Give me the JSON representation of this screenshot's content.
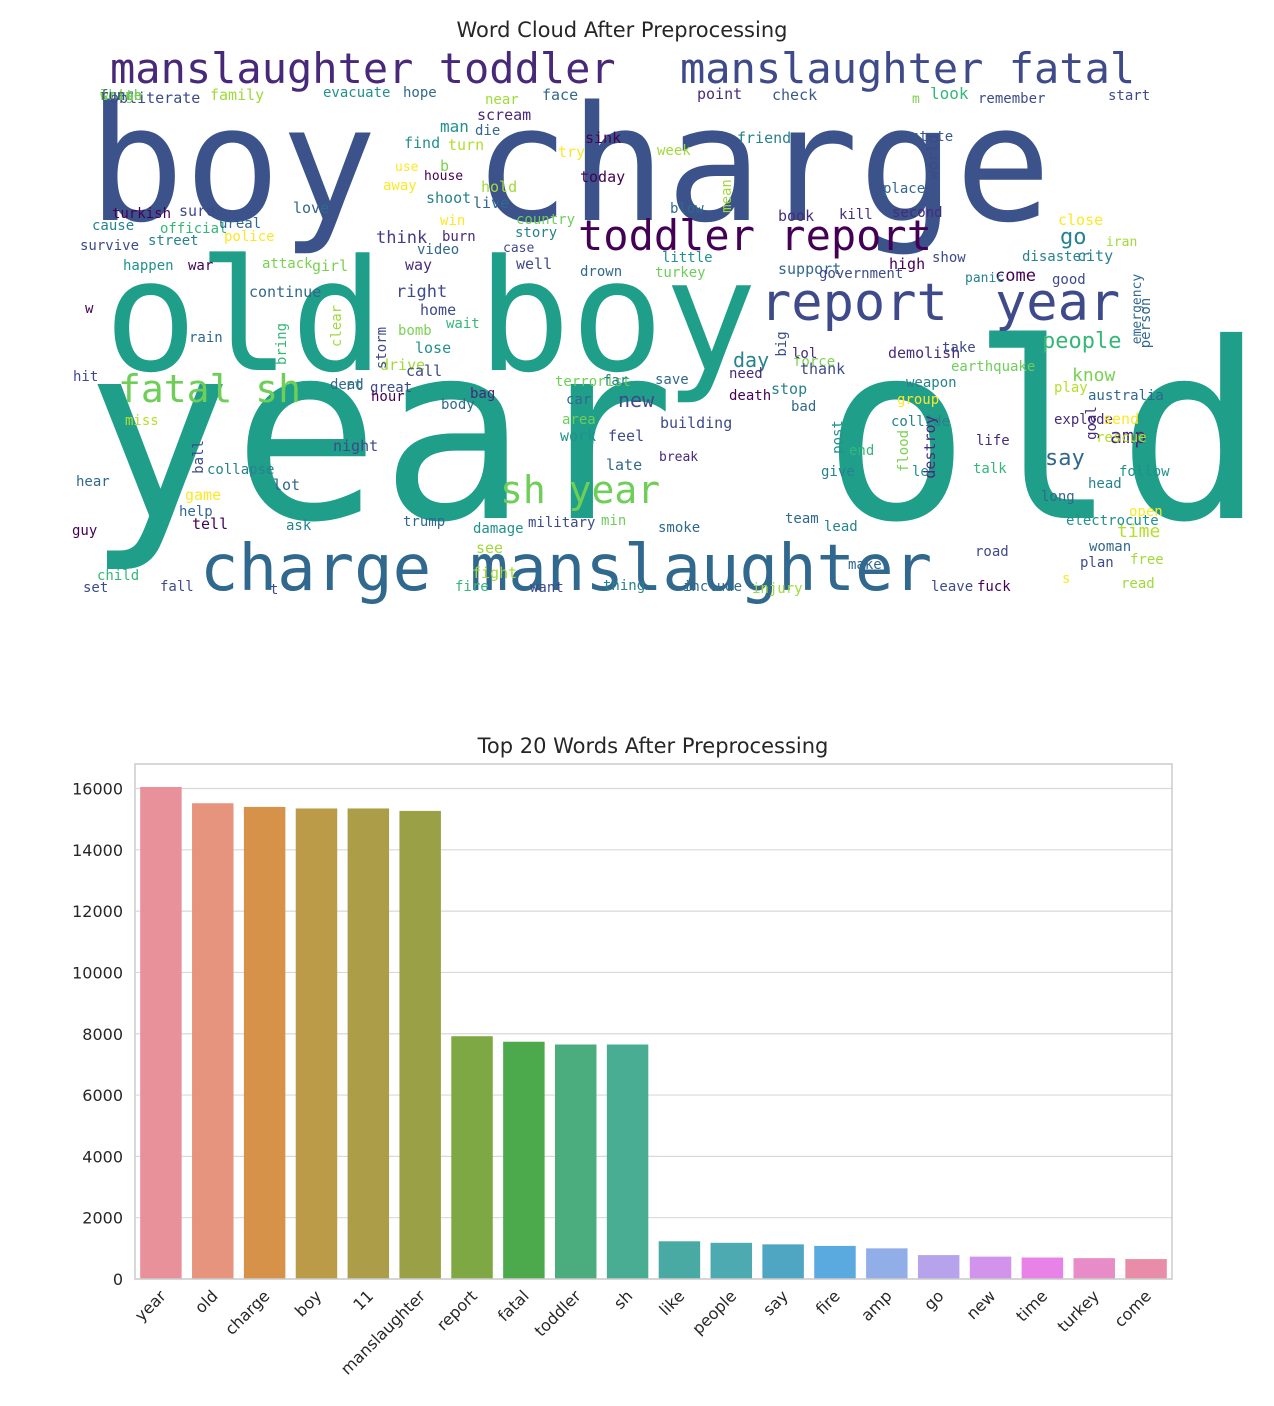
{
  "wordcloud": {
    "title": "Word Cloud After Preprocessing",
    "words": [
      {
        "text": "year old",
        "color": "#1f9e89"
      },
      {
        "text": "boy charge",
        "color": "#3b528b"
      },
      {
        "text": "old boy",
        "color": "#1f9e89"
      },
      {
        "text": "charge manslaughter",
        "color": "#31688e"
      },
      {
        "text": "manslaughter toddler",
        "color": "#482878"
      },
      {
        "text": "manslaughter fatal",
        "color": "#3e4a89"
      },
      {
        "text": "toddler report",
        "color": "#440154"
      },
      {
        "text": "report",
        "color": "#3e4a89"
      },
      {
        "text": "year",
        "color": "#3e4a89"
      },
      {
        "text": "fatal sh",
        "color": "#6ece58"
      },
      {
        "text": "sh year",
        "color": "#6ece58"
      },
      {
        "text": "people",
        "color": "#35b779"
      },
      {
        "text": "go",
        "color": "#26828e"
      },
      {
        "text": "say",
        "color": "#31688e"
      },
      {
        "text": "amp",
        "color": "#472c7a"
      },
      {
        "text": "know",
        "color": "#7ad151"
      },
      {
        "text": "time",
        "color": "#b5de2b"
      },
      {
        "text": "new",
        "color": "#3e4a89"
      },
      {
        "text": "day",
        "color": "#26828e"
      },
      {
        "text": "come",
        "color": "#440154"
      },
      {
        "text": "think",
        "color": "#433e85"
      },
      {
        "text": "right",
        "color": "#3e4a89"
      },
      {
        "text": "obliterate",
        "color": "#3e4a89"
      },
      {
        "text": "family",
        "color": "#a0da39"
      },
      {
        "text": "evacuate",
        "color": "#21918c"
      },
      {
        "text": "hope",
        "color": "#31688e"
      },
      {
        "text": "near",
        "color": "#a0da39"
      },
      {
        "text": "face",
        "color": "#31688e"
      },
      {
        "text": "point",
        "color": "#472c7a"
      },
      {
        "text": "check",
        "color": "#38598c"
      },
      {
        "text": "m",
        "color": "#7ad151"
      },
      {
        "text": "look",
        "color": "#35b779"
      },
      {
        "text": "remember",
        "color": "#3e4a89"
      },
      {
        "text": "start",
        "color": "#3e4a89"
      },
      {
        "text": "scream",
        "color": "#482878"
      },
      {
        "text": "man",
        "color": "#21918c"
      },
      {
        "text": "die",
        "color": "#31688e"
      },
      {
        "text": "sink",
        "color": "#440154"
      },
      {
        "text": "friend",
        "color": "#26828e"
      },
      {
        "text": "state",
        "color": "#38598c"
      },
      {
        "text": "find",
        "color": "#21918c"
      },
      {
        "text": "turn",
        "color": "#b5de2b"
      },
      {
        "text": "try",
        "color": "#fde725"
      },
      {
        "text": "week",
        "color": "#a0da39"
      },
      {
        "text": "world",
        "color": "#3e4a89"
      },
      {
        "text": "use",
        "color": "#fde725"
      },
      {
        "text": "b",
        "color": "#7ad151"
      },
      {
        "text": "today",
        "color": "#440154"
      },
      {
        "text": "house",
        "color": "#440154"
      },
      {
        "text": "away",
        "color": "#fde725"
      },
      {
        "text": "hold",
        "color": "#a0da39"
      },
      {
        "text": "place",
        "color": "#31688e"
      },
      {
        "text": "mean",
        "color": "#a0da39"
      },
      {
        "text": "shoot",
        "color": "#26828e"
      },
      {
        "text": "live",
        "color": "#31688e"
      },
      {
        "text": "blow",
        "color": "#31688e"
      },
      {
        "text": "turkish",
        "color": "#440154"
      },
      {
        "text": "sure",
        "color": "#3e4a89"
      },
      {
        "text": "love",
        "color": "#31688e"
      },
      {
        "text": "book",
        "color": "#472c7a"
      },
      {
        "text": "kill",
        "color": "#472c7a"
      },
      {
        "text": "second",
        "color": "#472c7a"
      },
      {
        "text": "close",
        "color": "#fde725"
      },
      {
        "text": "cause",
        "color": "#26828e"
      },
      {
        "text": "official",
        "color": "#35b779"
      },
      {
        "text": "ureal",
        "color": "#31688e"
      },
      {
        "text": "win",
        "color": "#fde725"
      },
      {
        "text": "country",
        "color": "#6ece58"
      },
      {
        "text": "survive",
        "color": "#3e4a89"
      },
      {
        "text": "street",
        "color": "#26828e"
      },
      {
        "text": "police",
        "color": "#fde725"
      },
      {
        "text": "burn",
        "color": "#472c7a"
      },
      {
        "text": "story",
        "color": "#26828e"
      },
      {
        "text": "video",
        "color": "#31688e"
      },
      {
        "text": "case",
        "color": "#3e4a89"
      },
      {
        "text": "little",
        "color": "#21918c"
      },
      {
        "text": "show",
        "color": "#3e4a89"
      },
      {
        "text": "disaster",
        "color": "#26828e"
      },
      {
        "text": "city",
        "color": "#26828e"
      },
      {
        "text": "iran",
        "color": "#a0da39"
      },
      {
        "text": "happen",
        "color": "#21918c"
      },
      {
        "text": "war",
        "color": "#440154"
      },
      {
        "text": "attack",
        "color": "#7ad151"
      },
      {
        "text": "girl",
        "color": "#7ad151"
      },
      {
        "text": "way",
        "color": "#472c7a"
      },
      {
        "text": "well",
        "color": "#3e4a89"
      },
      {
        "text": "drown",
        "color": "#31688e"
      },
      {
        "text": "turkey",
        "color": "#6ece58"
      },
      {
        "text": "support",
        "color": "#31688e"
      },
      {
        "text": "government",
        "color": "#3e4a89"
      },
      {
        "text": "high",
        "color": "#440154"
      },
      {
        "text": "panic",
        "color": "#26828e"
      },
      {
        "text": "good",
        "color": "#3e4a89"
      },
      {
        "text": "w",
        "color": "#440154"
      },
      {
        "text": "continue",
        "color": "#31688e"
      },
      {
        "text": "emergency",
        "color": "#31688e"
      },
      {
        "text": "person",
        "color": "#31688e"
      },
      {
        "text": "rain",
        "color": "#31688e"
      },
      {
        "text": "rt",
        "color": "#26828e"
      },
      {
        "text": "drive",
        "color": "#a0da39"
      },
      {
        "text": "home",
        "color": "#3e4a89"
      },
      {
        "text": "bomb",
        "color": "#7ad151"
      },
      {
        "text": "wait",
        "color": "#35b779"
      },
      {
        "text": "bring",
        "color": "#35b779"
      },
      {
        "text": "clear",
        "color": "#a0da39"
      },
      {
        "text": "storm",
        "color": "#3e4a89"
      },
      {
        "text": "lose",
        "color": "#21918c"
      },
      {
        "text": "force",
        "color": "#7ad151"
      },
      {
        "text": "lol",
        "color": "#472c7a"
      },
      {
        "text": "demolish",
        "color": "#472c7a"
      },
      {
        "text": "take",
        "color": "#3e4a89"
      },
      {
        "text": "hit",
        "color": "#3e4a89"
      },
      {
        "text": "call",
        "color": "#3e4a89"
      },
      {
        "text": "big",
        "color": "#3e4a89"
      },
      {
        "text": "thank",
        "color": "#3e4a89"
      },
      {
        "text": "need",
        "color": "#472c7a"
      },
      {
        "text": "earthquake",
        "color": "#6ece58"
      },
      {
        "text": "dead",
        "color": "#31688e"
      },
      {
        "text": "great",
        "color": "#3e4a89"
      },
      {
        "text": "terrorist",
        "color": "#6ece58"
      },
      {
        "text": "far",
        "color": "#26828e"
      },
      {
        "text": "save",
        "color": "#31688e"
      },
      {
        "text": "weapon",
        "color": "#26828e"
      },
      {
        "text": "play",
        "color": "#b5de2b"
      },
      {
        "text": "hour",
        "color": "#440154"
      },
      {
        "text": "body",
        "color": "#31688e"
      },
      {
        "text": "bag",
        "color": "#482878"
      },
      {
        "text": "car",
        "color": "#31688e"
      },
      {
        "text": "death",
        "color": "#440154"
      },
      {
        "text": "stop",
        "color": "#26828e"
      },
      {
        "text": "group",
        "color": "#fde725"
      },
      {
        "text": "bad",
        "color": "#31688e"
      },
      {
        "text": "australia",
        "color": "#31688e"
      },
      {
        "text": "miss",
        "color": "#b5de2b"
      },
      {
        "text": "area",
        "color": "#6ece58"
      },
      {
        "text": "building",
        "color": "#3e4a89"
      },
      {
        "text": "collide",
        "color": "#26828e"
      },
      {
        "text": "explode",
        "color": "#472c7a"
      },
      {
        "text": "rescue",
        "color": "#b5de2b"
      },
      {
        "text": "send",
        "color": "#fde725"
      },
      {
        "text": "work",
        "color": "#21918c"
      },
      {
        "text": "feel",
        "color": "#3e4a89"
      },
      {
        "text": "end",
        "color": "#35b779"
      },
      {
        "text": "let",
        "color": "#21918c"
      },
      {
        "text": "goal",
        "color": "#472c7a"
      },
      {
        "text": "life",
        "color": "#472c7a"
      },
      {
        "text": "night",
        "color": "#3e4a89"
      },
      {
        "text": "collapse",
        "color": "#26828e"
      },
      {
        "text": "post",
        "color": "#21918c"
      },
      {
        "text": "flood",
        "color": "#7ad151"
      },
      {
        "text": "destroy",
        "color": "#472c7a"
      },
      {
        "text": "late",
        "color": "#31688e"
      },
      {
        "text": "break",
        "color": "#482878"
      },
      {
        "text": "ball",
        "color": "#3e4a89"
      },
      {
        "text": "give",
        "color": "#26828e"
      },
      {
        "text": "talk",
        "color": "#35b779"
      },
      {
        "text": "follow",
        "color": "#21918c"
      },
      {
        "text": "hear",
        "color": "#31688e"
      },
      {
        "text": "game",
        "color": "#fde725"
      },
      {
        "text": "lot",
        "color": "#31688e"
      },
      {
        "text": "head",
        "color": "#26828e"
      },
      {
        "text": "long",
        "color": "#31688e"
      },
      {
        "text": "help",
        "color": "#31688e"
      },
      {
        "text": "open",
        "color": "#fde725"
      },
      {
        "text": "tell",
        "color": "#440154"
      },
      {
        "text": "ask",
        "color": "#26828e"
      },
      {
        "text": "trump",
        "color": "#31688e"
      },
      {
        "text": "military",
        "color": "#3e4a89"
      },
      {
        "text": "min",
        "color": "#6ece58"
      },
      {
        "text": "team",
        "color": "#31688e"
      },
      {
        "text": "lead",
        "color": "#26828e"
      },
      {
        "text": "electrocute",
        "color": "#21918c"
      },
      {
        "text": "guy",
        "color": "#440154"
      },
      {
        "text": "damage",
        "color": "#21918c"
      },
      {
        "text": "smoke",
        "color": "#31688e"
      },
      {
        "text": "see",
        "color": "#a0da39"
      },
      {
        "text": "woman",
        "color": "#31688e"
      },
      {
        "text": "road",
        "color": "#3e4a89"
      },
      {
        "text": "plan",
        "color": "#3e4a89"
      },
      {
        "text": "free",
        "color": "#a0da39"
      },
      {
        "text": "make",
        "color": "#31688e"
      },
      {
        "text": "fight",
        "color": "#a0da39"
      },
      {
        "text": "child",
        "color": "#35b779"
      },
      {
        "text": "s",
        "color": "#fde725"
      },
      {
        "text": "set",
        "color": "#3e4a89"
      },
      {
        "text": "fall",
        "color": "#3e4a89"
      },
      {
        "text": "t",
        "color": "#3e4a89"
      },
      {
        "text": "fire",
        "color": "#35b779"
      },
      {
        "text": "want",
        "color": "#3e4a89"
      },
      {
        "text": "thing",
        "color": "#26828e"
      },
      {
        "text": "include",
        "color": "#31688e"
      },
      {
        "text": "injury",
        "color": "#a0da39"
      },
      {
        "text": "leave",
        "color": "#3e4a89"
      },
      {
        "text": "fuck",
        "color": "#440154"
      },
      {
        "text": "read",
        "color": "#a0da39"
      },
      {
        "text": "large",
        "color": "#6ece58"
      },
      {
        "text": "watch",
        "color": "#a0da39"
      },
      {
        "text": "fear",
        "color": "#31688e"
      },
      {
        "text": "shit",
        "color": "#6ece58"
      },
      {
        "text": "crush",
        "color": "#6ece58"
      },
      {
        "text": "run",
        "color": "#3e4a89"
      }
    ]
  },
  "chart_data": {
    "type": "bar",
    "title": "Top 20 Words After Preprocessing",
    "xlabel": "",
    "ylabel": "",
    "categories": [
      "year",
      "old",
      "charge",
      "boy",
      "11",
      "manslaughter",
      "report",
      "fatal",
      "toddler",
      "sh",
      "like",
      "people",
      "say",
      "fire",
      "amp",
      "go",
      "new",
      "time",
      "turkey",
      "come"
    ],
    "values": [
      16050,
      15520,
      15400,
      15350,
      15350,
      15270,
      7920,
      7740,
      7650,
      7650,
      1230,
      1180,
      1130,
      1080,
      1000,
      780,
      730,
      700,
      680,
      650
    ],
    "colors": [
      "#e8919b",
      "#e6947d",
      "#d69249",
      "#bc9b48",
      "#ac9e48",
      "#9aa045",
      "#7ea844",
      "#4daa4c",
      "#4bad7d",
      "#48ad93",
      "#49aaa3",
      "#4daab0",
      "#4ea6c3",
      "#5aaae0",
      "#92aee8",
      "#b6a3ec",
      "#d293ec",
      "#e882e8",
      "#e88cc8",
      "#e88ca8"
    ],
    "ylim": [
      0,
      16800
    ],
    "yticks": [
      0,
      2000,
      4000,
      6000,
      8000,
      10000,
      12000,
      14000,
      16000
    ],
    "grid": true
  }
}
